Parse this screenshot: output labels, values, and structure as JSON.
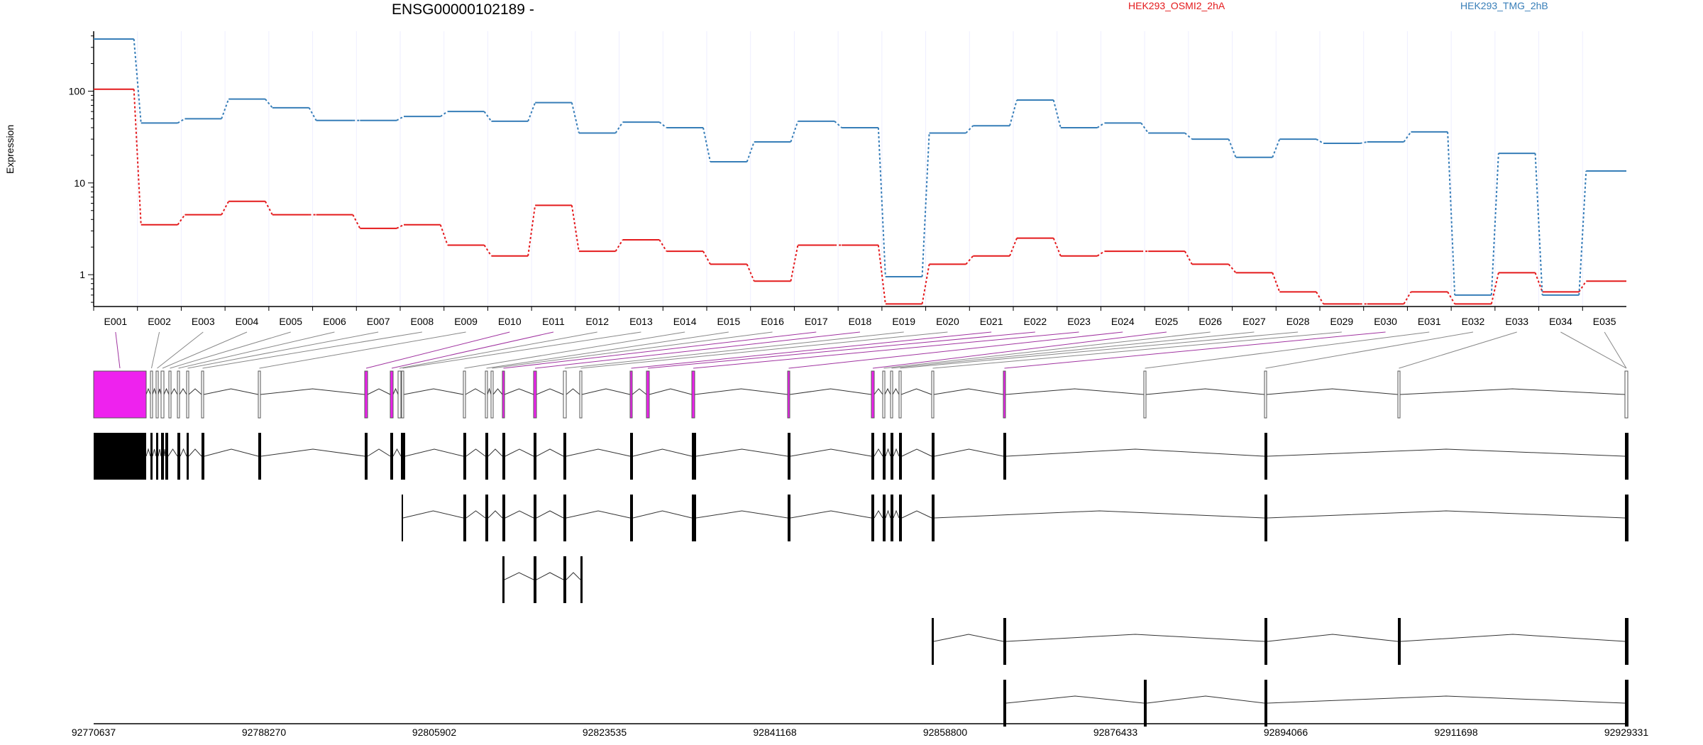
{
  "chart_data": {
    "type": "line",
    "title": "ENSG00000102189 -",
    "ylabel": "Expression",
    "yscale": "log",
    "yticks": [
      1,
      10,
      100
    ],
    "ylim": [
      0.45,
      450
    ],
    "exon_bins": [
      "E001",
      "E002",
      "E003",
      "E004",
      "E005",
      "E006",
      "E007",
      "E008",
      "E009",
      "E010",
      "E011",
      "E012",
      "E013",
      "E014",
      "E015",
      "E016",
      "E017",
      "E018",
      "E019",
      "E020",
      "E021",
      "E022",
      "E023",
      "E024",
      "E025",
      "E026",
      "E027",
      "E028",
      "E029",
      "E030",
      "E031",
      "E032",
      "E033",
      "E034",
      "E035"
    ],
    "series": [
      {
        "name": "HEK293_OSMI2_2hA",
        "color": "#e41a1c",
        "values": [
          105,
          3.5,
          4.5,
          6.3,
          4.5,
          4.5,
          3.2,
          3.5,
          2.1,
          1.6,
          5.7,
          1.8,
          2.4,
          1.8,
          1.3,
          0.85,
          2.1,
          2.1,
          0.48,
          1.3,
          1.6,
          2.5,
          1.6,
          1.8,
          1.8,
          1.3,
          1.05,
          0.65,
          0.48,
          0.48,
          0.65,
          0.48,
          1.05,
          0.65,
          0.85
        ]
      },
      {
        "name": "HEK293_TMG_2hB",
        "color": "#377eb8",
        "values": [
          370,
          45,
          50,
          82,
          66,
          48,
          48,
          53,
          60,
          47,
          75,
          35,
          46,
          40,
          17,
          28,
          47,
          40,
          0.95,
          35,
          42,
          80,
          40,
          45,
          35,
          30,
          19,
          30,
          27,
          28,
          36,
          0.6,
          21,
          0.6,
          13.5
        ]
      }
    ],
    "grid": "vertical",
    "genomic_axis": {
      "ticks": [
        "92770637",
        "92788270",
        "92805902",
        "92823535",
        "92841168",
        "92858800",
        "92876433",
        "92894066",
        "92911698",
        "92929331"
      ]
    },
    "colors": {
      "significant_exon": "#ee22ee",
      "exon_outline": "#555555",
      "connector_gray": "#888888",
      "connector_purple": "#a033a0",
      "grid": "#eeeeff"
    }
  }
}
